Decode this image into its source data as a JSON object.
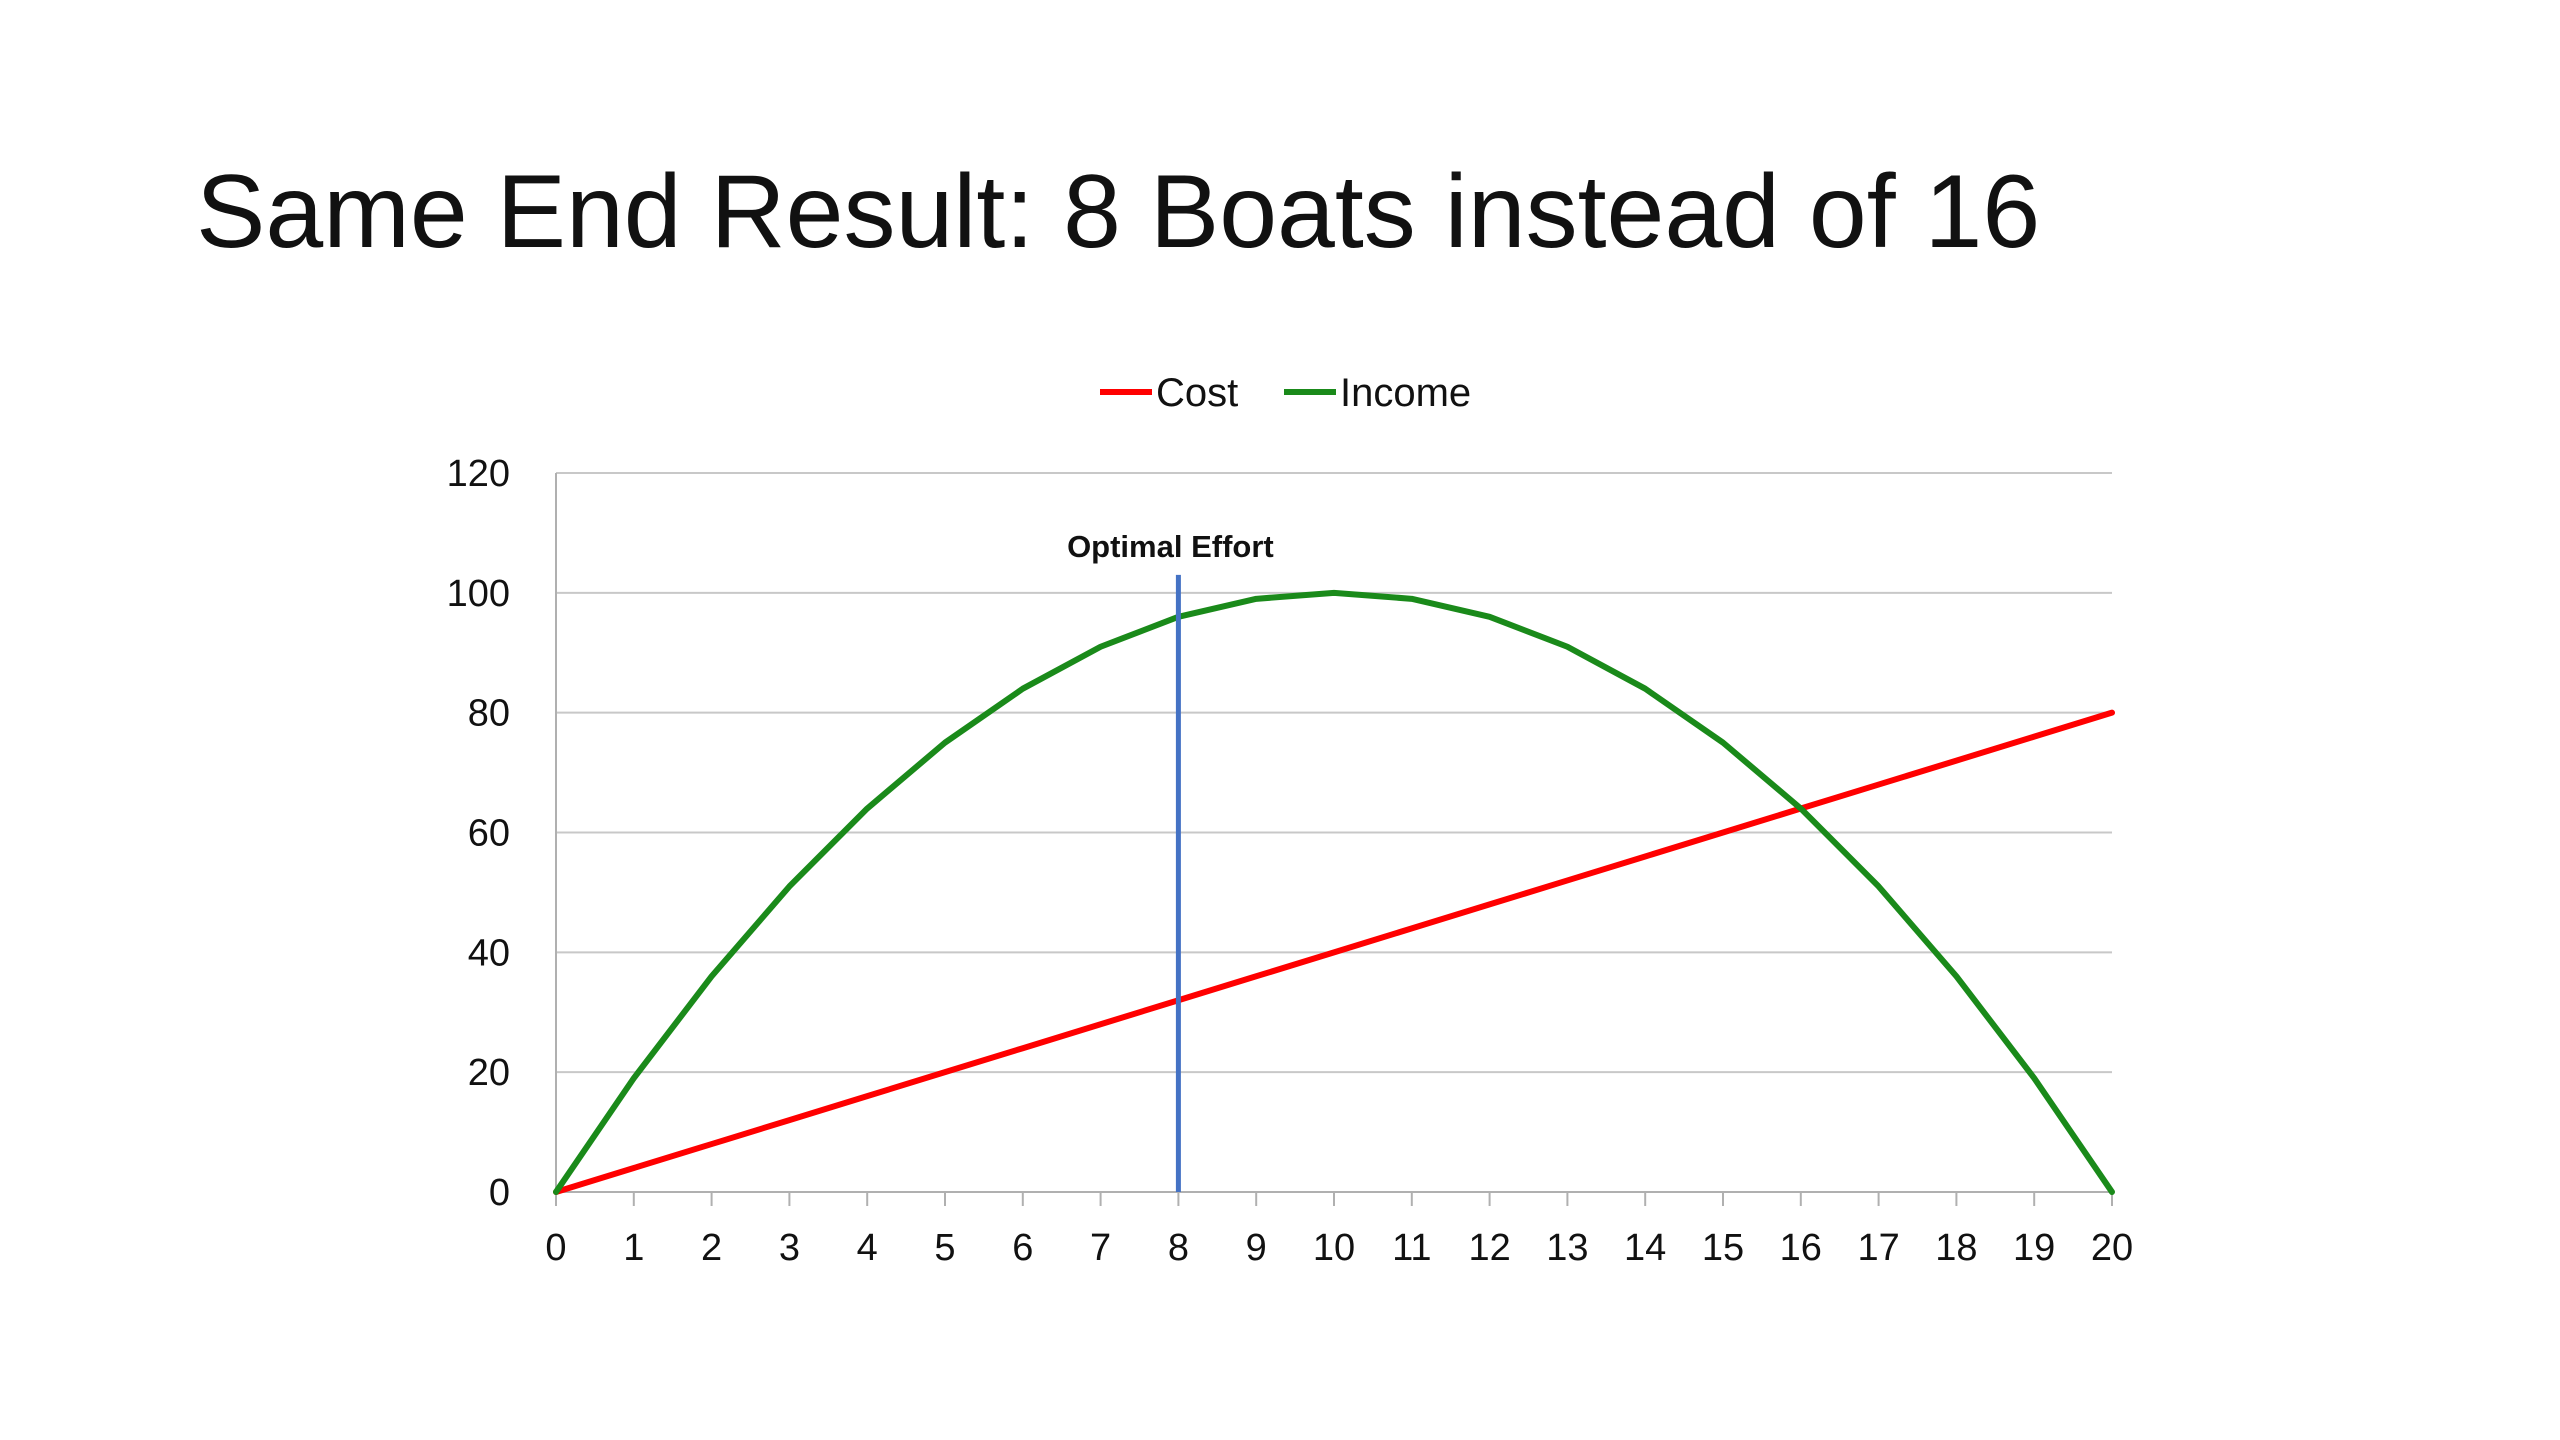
{
  "slide": {
    "title": "Same End Result: 8 Boats instead of 16"
  },
  "chart_data": {
    "type": "line",
    "title": "",
    "xlabel": "",
    "ylabel": "",
    "x": [
      0,
      1,
      2,
      3,
      4,
      5,
      6,
      7,
      8,
      9,
      10,
      11,
      12,
      13,
      14,
      15,
      16,
      17,
      18,
      19,
      20
    ],
    "xlim": [
      0,
      20
    ],
    "ylim": [
      0,
      120
    ],
    "y_ticks": [
      0,
      20,
      40,
      60,
      80,
      100,
      120
    ],
    "grid": "horizontal",
    "legend_position": "top",
    "series": [
      {
        "name": "Cost",
        "color": "#ff0000",
        "values": [
          0,
          4,
          8,
          12,
          16,
          20,
          24,
          28,
          32,
          36,
          40,
          44,
          48,
          52,
          56,
          60,
          64,
          68,
          72,
          76,
          80
        ]
      },
      {
        "name": "Income",
        "color": "#1a8a1a",
        "values": [
          0,
          19,
          36,
          51,
          64,
          75,
          84,
          91,
          96,
          99,
          100,
          99,
          96,
          91,
          84,
          75,
          64,
          51,
          36,
          19,
          0
        ]
      }
    ],
    "annotations": [
      {
        "label": "Optimal Effort",
        "type": "vertical-line",
        "x": 8,
        "y_top": 103,
        "color": "#4472c4"
      }
    ]
  }
}
